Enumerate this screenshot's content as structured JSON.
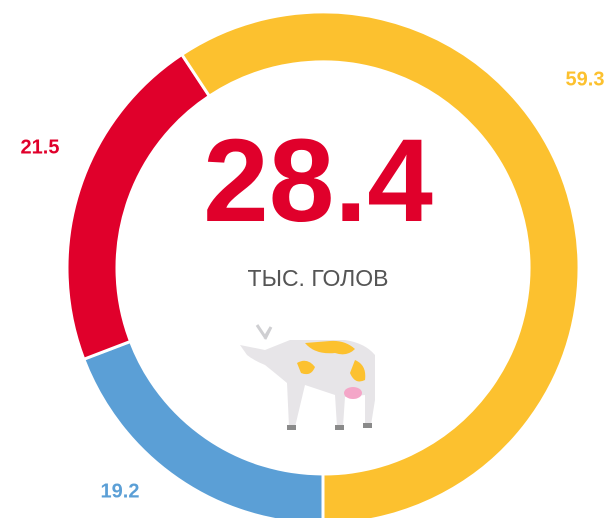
{
  "chart_data": {
    "type": "donut",
    "center_value": "28.4",
    "center_label": "ТЫС. ГОЛОВ",
    "categories": [
      null,
      null,
      null
    ],
    "values": [
      19.2,
      21.5,
      59.3
    ],
    "colors": [
      "#5b9fd6",
      "#e0002b",
      "#fcc12f"
    ]
  }
}
